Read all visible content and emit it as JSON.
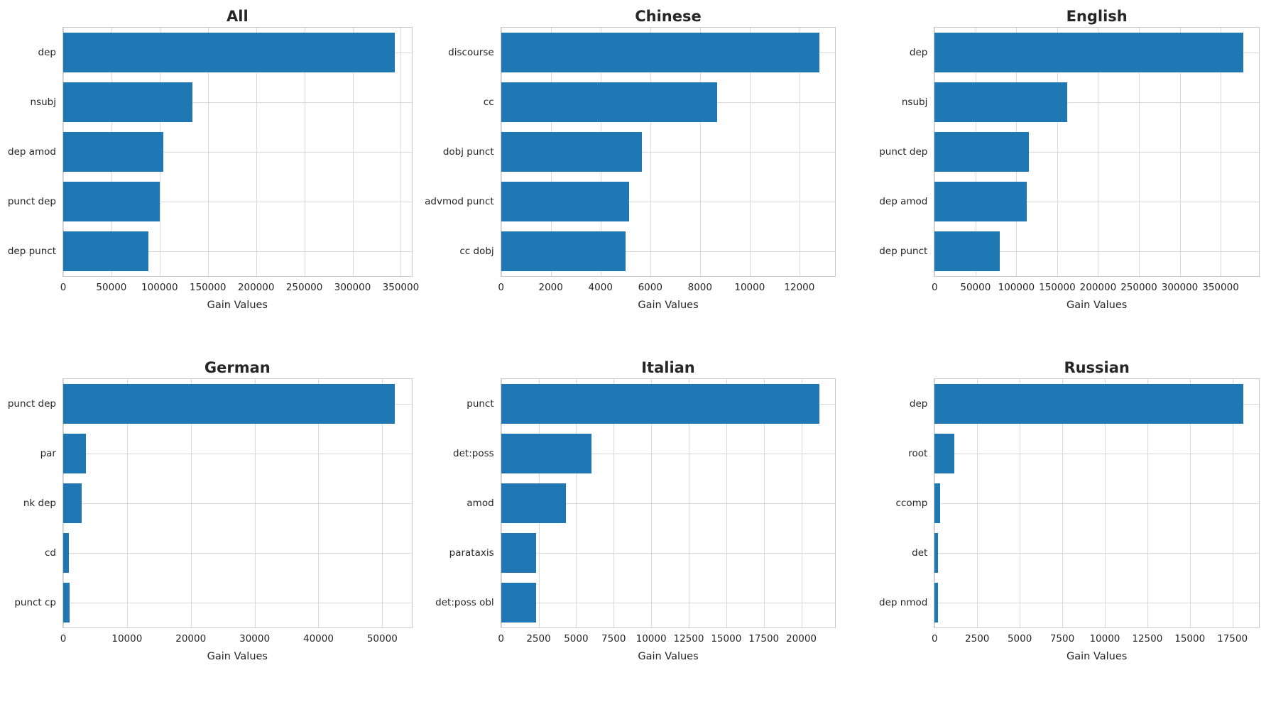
{
  "figure": {
    "background": "#ffffff",
    "bar_color": "#1f77b4",
    "grid_color": "#d9d9d9",
    "text_color": "#262626"
  },
  "chart_data": [
    {
      "type": "bar",
      "orientation": "horizontal",
      "title": "All",
      "xlabel": "Gain Values",
      "categories": [
        "dep",
        "nsubj",
        "dep amod",
        "punct dep",
        "dep punct"
      ],
      "values": [
        344000,
        134000,
        104000,
        100000,
        88000
      ],
      "xticks": [
        0,
        50000,
        100000,
        150000,
        200000,
        250000,
        300000,
        350000
      ],
      "xlim": [
        0,
        361200
      ],
      "grid": true,
      "legend": null
    },
    {
      "type": "bar",
      "orientation": "horizontal",
      "title": "Chinese",
      "xlabel": "Gain Values",
      "categories": [
        "discourse",
        "cc",
        "dobj punct",
        "advmod punct",
        "cc dobj"
      ],
      "values": [
        12800,
        8700,
        5650,
        5150,
        5000
      ],
      "xticks": [
        0,
        2000,
        4000,
        6000,
        8000,
        10000,
        12000
      ],
      "xlim": [
        0,
        13440
      ],
      "grid": true,
      "legend": null
    },
    {
      "type": "bar",
      "orientation": "horizontal",
      "title": "English",
      "xlabel": "Gain Values",
      "categories": [
        "dep",
        "nsubj",
        "punct dep",
        "dep amod",
        "dep punct"
      ],
      "values": [
        378000,
        162000,
        115000,
        113000,
        80000
      ],
      "xticks": [
        0,
        50000,
        100000,
        150000,
        200000,
        250000,
        300000,
        350000
      ],
      "xlim": [
        0,
        396900
      ],
      "grid": true,
      "legend": null
    },
    {
      "type": "bar",
      "orientation": "horizontal",
      "title": "German",
      "xlabel": "Gain Values",
      "categories": [
        "punct dep",
        "par",
        "nk dep",
        "cd",
        "punct cp"
      ],
      "values": [
        52000,
        3600,
        2850,
        900,
        950
      ],
      "xticks": [
        0,
        10000,
        20000,
        30000,
        40000,
        50000
      ],
      "xlim": [
        0,
        54600
      ],
      "grid": true,
      "legend": null
    },
    {
      "type": "bar",
      "orientation": "horizontal",
      "title": "Italian",
      "xlabel": "Gain Values",
      "categories": [
        "punct",
        "det:poss",
        "amod",
        "parataxis",
        "det:poss obl"
      ],
      "values": [
        21200,
        6000,
        4300,
        2350,
        2350
      ],
      "xticks": [
        0,
        2500,
        5000,
        7500,
        10000,
        12500,
        15000,
        17500,
        20000
      ],
      "xlim": [
        0,
        22260
      ],
      "grid": true,
      "legend": null
    },
    {
      "type": "bar",
      "orientation": "horizontal",
      "title": "Russian",
      "xlabel": "Gain Values",
      "categories": [
        "dep",
        "root",
        "ccomp",
        "det",
        "dep nmod"
      ],
      "values": [
        18150,
        1150,
        300,
        200,
        210
      ],
      "xticks": [
        0,
        2500,
        5000,
        7500,
        10000,
        12500,
        15000,
        17500
      ],
      "xlim": [
        0,
        19060
      ],
      "grid": true,
      "legend": null
    }
  ]
}
